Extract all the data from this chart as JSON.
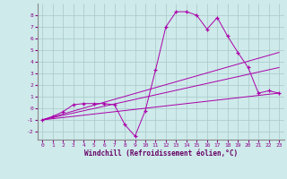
{
  "xlabel": "Windchill (Refroidissement éolien,°C)",
  "background_color": "#ceeaea",
  "grid_color": "#aac8c8",
  "line_color": "#aa00aa",
  "xlim": [
    -0.5,
    23.5
  ],
  "ylim": [
    -2.7,
    9.0
  ],
  "xticks": [
    0,
    1,
    2,
    3,
    4,
    5,
    6,
    7,
    8,
    9,
    10,
    11,
    12,
    13,
    14,
    15,
    16,
    17,
    18,
    19,
    20,
    21,
    22,
    23
  ],
  "yticks": [
    -2,
    -1,
    0,
    1,
    2,
    3,
    4,
    5,
    6,
    7,
    8
  ],
  "series1_x": [
    0,
    1,
    2,
    3,
    4,
    5,
    6,
    7,
    8,
    9,
    10,
    11,
    12,
    13,
    14,
    15,
    16,
    17,
    18,
    19,
    20,
    21,
    22,
    23
  ],
  "series1_y": [
    -1.0,
    -0.7,
    -0.3,
    0.3,
    0.4,
    0.4,
    0.4,
    0.3,
    -1.4,
    -2.4,
    -0.2,
    3.3,
    7.0,
    8.3,
    8.3,
    8.0,
    6.8,
    7.8,
    6.2,
    4.8,
    3.5,
    1.3,
    1.5,
    1.3
  ],
  "series2_x": [
    0,
    23
  ],
  "series2_y": [
    -1.0,
    1.3
  ],
  "series3_x": [
    0,
    23
  ],
  "series3_y": [
    -1.0,
    3.5
  ],
  "series4_x": [
    0,
    23
  ],
  "series4_y": [
    -1.0,
    4.8
  ]
}
